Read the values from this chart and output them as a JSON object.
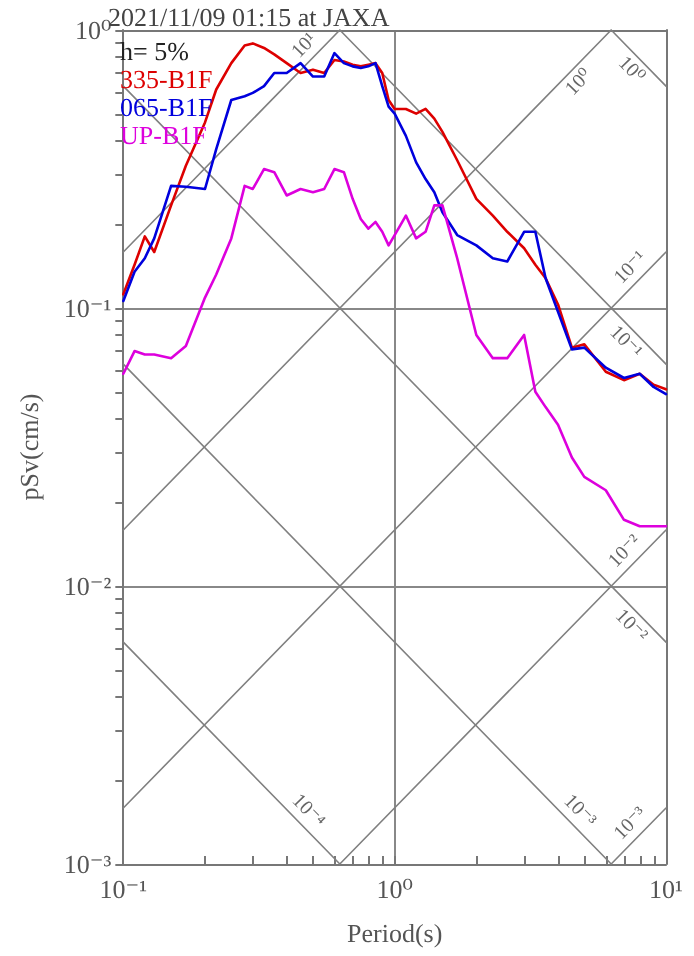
{
  "chart_data": {
    "type": "line",
    "title": "2021/11/09 01:15 at JAXA",
    "xlabel": "Period(s)",
    "ylabel": "pSv(cm/s)",
    "annotations": [
      "h= 5%"
    ],
    "log": "xy",
    "grid": true,
    "legend": "top left",
    "marker": "none",
    "line_style": "solid",
    "xlim": [
      0.1,
      10
    ],
    "ylim": [
      0.001,
      1
    ],
    "xticks": [
      {
        "value": 0.1,
        "label": "10⁻¹"
      },
      {
        "value": 0.2,
        "label": null
      },
      {
        "value": 0.3,
        "label": null
      },
      {
        "value": 0.4,
        "label": null
      },
      {
        "value": 0.5,
        "label": null
      },
      {
        "value": 0.6,
        "label": null
      },
      {
        "value": 0.7,
        "label": null
      },
      {
        "value": 0.8,
        "label": null
      },
      {
        "value": 0.9,
        "label": null
      },
      {
        "value": 1,
        "label": "10⁰"
      },
      {
        "value": 2,
        "label": null
      },
      {
        "value": 3,
        "label": null
      },
      {
        "value": 4,
        "label": null
      },
      {
        "value": 5,
        "label": null
      },
      {
        "value": 6,
        "label": null
      },
      {
        "value": 7,
        "label": null
      },
      {
        "value": 8,
        "label": null
      },
      {
        "value": 9,
        "label": null
      },
      {
        "value": 10,
        "label": "10¹"
      }
    ],
    "yticks": [
      {
        "value": 0.001,
        "label": "10⁻³"
      },
      {
        "value": 0.002,
        "label": null
      },
      {
        "value": 0.003,
        "label": null
      },
      {
        "value": 0.004,
        "label": null
      },
      {
        "value": 0.005,
        "label": null
      },
      {
        "value": 0.006,
        "label": null
      },
      {
        "value": 0.007,
        "label": null
      },
      {
        "value": 0.008,
        "label": null
      },
      {
        "value": 0.009,
        "label": null
      },
      {
        "value": 0.01,
        "label": "10⁻²"
      },
      {
        "value": 0.02,
        "label": null
      },
      {
        "value": 0.03,
        "label": null
      },
      {
        "value": 0.04,
        "label": null
      },
      {
        "value": 0.05,
        "label": null
      },
      {
        "value": 0.06,
        "label": null
      },
      {
        "value": 0.07,
        "label": null
      },
      {
        "value": 0.08,
        "label": null
      },
      {
        "value": 0.09,
        "label": null
      },
      {
        "value": 0.1,
        "label": "10⁻¹"
      },
      {
        "value": 0.2,
        "label": null
      },
      {
        "value": 0.3,
        "label": null
      },
      {
        "value": 0.4,
        "label": null
      },
      {
        "value": 0.5,
        "label": null
      },
      {
        "value": 0.6,
        "label": null
      },
      {
        "value": 0.7,
        "label": null
      },
      {
        "value": 0.8,
        "label": null
      },
      {
        "value": 0.9,
        "label": null
      },
      {
        "value": 1,
        "label": "10⁰"
      }
    ],
    "x": [
      0.1,
      0.11,
      0.12,
      0.13,
      0.15,
      0.17,
      0.2,
      0.22,
      0.25,
      0.28,
      0.3,
      0.33,
      0.36,
      0.4,
      0.45,
      0.5,
      0.55,
      0.6,
      0.65,
      0.7,
      0.75,
      0.8,
      0.85,
      0.9,
      0.95,
      1.0,
      1.1,
      1.2,
      1.3,
      1.4,
      1.5,
      1.7,
      2.0,
      2.3,
      2.6,
      3.0,
      3.3,
      3.6,
      4.0,
      4.5,
      5.0,
      6.0,
      7.0,
      8.0,
      9.0,
      10
    ],
    "series": [
      {
        "name": "335-B1F",
        "color": "#dd0000",
        "values": [
          0.112,
          0.143,
          0.181,
          0.159,
          0.234,
          0.325,
          0.465,
          0.611,
          0.76,
          0.88,
          0.895,
          0.862,
          0.817,
          0.76,
          0.7,
          0.72,
          0.7,
          0.78,
          0.77,
          0.75,
          0.74,
          0.75,
          0.76,
          0.7,
          0.56,
          0.52,
          0.52,
          0.5,
          0.52,
          0.48,
          0.43,
          0.34,
          0.247,
          0.215,
          0.188,
          0.164,
          0.143,
          0.128,
          0.103,
          0.072,
          0.074,
          0.059,
          0.055,
          0.058,
          0.053,
          0.051
        ]
      },
      {
        "name": "065-B1F",
        "color": "#0000dd",
        "values": [
          0.106,
          0.135,
          0.151,
          0.178,
          0.275,
          0.273,
          0.268,
          0.373,
          0.56,
          0.578,
          0.594,
          0.628,
          0.7,
          0.7,
          0.76,
          0.68,
          0.68,
          0.826,
          0.76,
          0.74,
          0.73,
          0.74,
          0.76,
          0.628,
          0.53,
          0.5,
          0.416,
          0.334,
          0.291,
          0.261,
          0.221,
          0.183,
          0.168,
          0.151,
          0.147,
          0.188,
          0.188,
          0.128,
          0.097,
          0.071,
          0.072,
          0.061,
          0.056,
          0.058,
          0.052,
          0.049
        ]
      },
      {
        "name": "UP-B1F",
        "color": "#dd00dd",
        "values": [
          0.058,
          0.07,
          0.068,
          0.068,
          0.066,
          0.073,
          0.109,
          0.132,
          0.178,
          0.275,
          0.268,
          0.316,
          0.308,
          0.254,
          0.268,
          0.261,
          0.268,
          0.316,
          0.308,
          0.247,
          0.209,
          0.193,
          0.204,
          0.188,
          0.168,
          0.183,
          0.215,
          0.178,
          0.188,
          0.234,
          0.234,
          0.151,
          0.08,
          0.066,
          0.066,
          0.08,
          0.05,
          0.044,
          0.038,
          0.029,
          0.0247,
          0.0221,
          0.0173,
          0.0164,
          0.0164,
          0.0164
        ]
      },
      {
        "name": "10¹",
        "color": "#808080",
        "x": [
          0.1,
          0.628
        ],
        "values": [
          0.159,
          1
        ]
      },
      {
        "name": "10⁰",
        "color": "#808080",
        "x": [
          0.1,
          6.28
        ],
        "values": [
          0.0159,
          1
        ]
      },
      {
        "name": "10⁻¹",
        "color": "#808080",
        "x": [
          0.1,
          10
        ],
        "values": [
          0.00159,
          0.159
        ]
      },
      {
        "name": "10⁻²",
        "color": "#808080",
        "x": [
          0.628,
          10
        ],
        "values": [
          0.001,
          0.0159
        ]
      },
      {
        "name": "10⁻³",
        "color": "#808080",
        "x": [
          6.28,
          10
        ],
        "values": [
          0.001,
          0.00159
        ]
      },
      {
        "name": "10⁰",
        "color": "#808080",
        "x": [
          6.28,
          10
        ],
        "values": [
          1,
          0.628
        ]
      },
      {
        "name": "10⁻¹",
        "color": "#808080",
        "x": [
          0.628,
          10
        ],
        "values": [
          1,
          0.0628
        ]
      },
      {
        "name": "10⁻²",
        "color": "#808080",
        "x": [
          0.1,
          10
        ],
        "values": [
          0.628,
          0.00628
        ]
      },
      {
        "name": "10⁻³",
        "color": "#808080",
        "x": [
          0.1,
          6.28
        ],
        "values": [
          0.0628,
          0.001
        ]
      },
      {
        "name": "10⁻⁴",
        "color": "#808080",
        "x": [
          0.1,
          0.628
        ],
        "values": [
          0.00628,
          0.001
        ]
      }
    ]
  }
}
